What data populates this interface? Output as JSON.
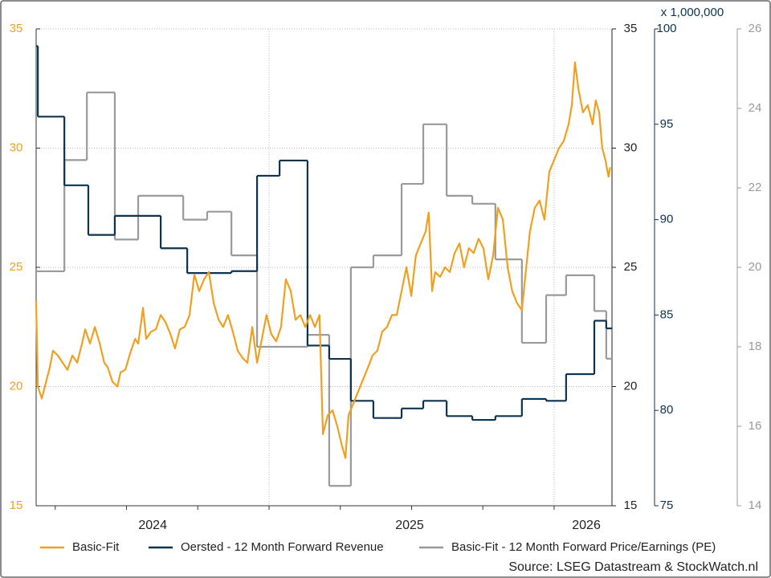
{
  "chart_data": {
    "type": "line",
    "source": "Source: LSEG Datastream & StockWatch.nl",
    "xlim": [
      2024.183,
      2026.203
    ],
    "xticks": [
      {
        "value": 2024.592,
        "label": "2024"
      },
      {
        "value": 2025.493,
        "label": "2025"
      },
      {
        "value": 2026.113,
        "label": "2026"
      }
    ],
    "x_minor_ticks": [
      2024.25,
      2024.5,
      2024.75,
      2025,
      2025.25,
      2025.5,
      2025.75,
      2026
    ],
    "x_grid": [
      2025,
      2026
    ],
    "ylim": [
      15,
      35
    ],
    "yticks": [
      15,
      20,
      25,
      30,
      35
    ],
    "y2lim": [
      75,
      100
    ],
    "y2ticks": [
      75,
      80,
      85,
      90,
      95,
      100
    ],
    "y2_unit": "x 1,000,000",
    "y3lim": [
      14,
      26
    ],
    "y3ticks": [
      14,
      16,
      18,
      20,
      22,
      24,
      26
    ],
    "grid": true,
    "legend": "bottom",
    "series": [
      {
        "name": "Basic-Fit",
        "color": "#f0a020",
        "axis": "y",
        "drawstyle": "line",
        "x": [
          2024.183,
          2024.189,
          2024.203,
          2024.22,
          2024.231,
          2024.242,
          2024.259,
          2024.276,
          2024.293,
          2024.31,
          2024.327,
          2024.344,
          2024.355,
          2024.372,
          2024.389,
          2024.406,
          2024.422,
          2024.434,
          2024.451,
          2024.468,
          2024.479,
          2024.496,
          2024.513,
          2024.53,
          2024.541,
          2024.558,
          2024.569,
          2024.586,
          2024.603,
          2024.62,
          2024.637,
          2024.654,
          2024.67,
          2024.687,
          2024.704,
          2024.721,
          2024.738,
          2024.755,
          2024.772,
          2024.789,
          2024.806,
          2024.823,
          2024.839,
          2024.856,
          2024.873,
          2024.89,
          2024.907,
          2024.924,
          2024.941,
          2024.958,
          2024.975,
          2024.991,
          2025.008,
          2025.025,
          2025.042,
          2025.059,
          2025.076,
          2025.093,
          2025.11,
          2025.127,
          2025.144,
          2025.161,
          2025.177,
          2025.189,
          2025.206,
          2025.223,
          2025.24,
          2025.256,
          2025.268,
          2025.279,
          2025.296,
          2025.313,
          2025.33,
          2025.347,
          2025.363,
          2025.38,
          2025.397,
          2025.414,
          2025.431,
          2025.448,
          2025.465,
          2025.482,
          2025.499,
          2025.515,
          2025.532,
          2025.549,
          2025.56,
          2025.572,
          2025.583,
          2025.6,
          2025.617,
          2025.634,
          2025.651,
          2025.668,
          2025.684,
          2025.701,
          2025.718,
          2025.735,
          2025.752,
          2025.769,
          2025.786,
          2025.803,
          2025.82,
          2025.837,
          2025.853,
          2025.87,
          2025.887,
          2025.898,
          2025.915,
          2025.932,
          2025.949,
          2025.966,
          2025.983,
          2026.0,
          2026.017,
          2026.034,
          2026.051,
          2026.062,
          2026.073,
          2026.085,
          2026.101,
          2026.118,
          2026.135,
          2026.146,
          2026.158,
          2026.169,
          2026.18,
          2026.191,
          2026.197
        ],
        "values": [
          23.6,
          20.0,
          19.5,
          20.3,
          20.8,
          21.5,
          21.3,
          21.0,
          20.7,
          21.3,
          21.0,
          21.8,
          22.4,
          21.8,
          22.5,
          21.8,
          21.0,
          20.8,
          20.2,
          20.0,
          20.6,
          20.7,
          21.4,
          22.0,
          21.8,
          23.3,
          22.0,
          22.3,
          22.4,
          23.0,
          22.7,
          22.2,
          21.6,
          22.4,
          22.5,
          23.0,
          24.7,
          24.0,
          24.5,
          24.8,
          23.5,
          22.8,
          22.5,
          23.0,
          22.3,
          21.5,
          21.2,
          21.0,
          22.5,
          21.0,
          22.0,
          23.0,
          22.2,
          21.9,
          22.5,
          24.5,
          24.0,
          22.8,
          23.0,
          22.5,
          23.0,
          22.5,
          23.0,
          18.0,
          18.8,
          19.0,
          18.3,
          17.5,
          17.0,
          18.8,
          19.3,
          19.8,
          20.3,
          20.8,
          21.3,
          21.5,
          22.3,
          22.5,
          23.0,
          23.0,
          24.0,
          25.0,
          23.8,
          25.5,
          26.0,
          26.5,
          27.3,
          24.0,
          24.8,
          24.6,
          25.0,
          24.8,
          25.6,
          26.0,
          25.0,
          25.8,
          25.6,
          26.2,
          25.8,
          24.5,
          25.5,
          27.5,
          27.0,
          25.0,
          24.0,
          23.5,
          23.2,
          24.5,
          26.5,
          27.5,
          27.8,
          27.0,
          29.0,
          29.5,
          30.0,
          30.3,
          31.0,
          31.8,
          33.6,
          32.5,
          31.5,
          31.8,
          31.0,
          32.0,
          31.5,
          30.0,
          29.5,
          28.8,
          29.2
        ]
      },
      {
        "name": "Oersted - 12 Month Forward Revenue",
        "color": "#0d3350",
        "axis": "y2",
        "drawstyle": "steps-post",
        "x": [
          2024.183,
          2024.189,
          2024.282,
          2024.366,
          2024.459,
          2024.62,
          2024.713,
          2024.868,
          2024.958,
          2025.037,
          2025.135,
          2025.211,
          2025.287,
          2025.366,
          2025.465,
          2025.541,
          2025.623,
          2025.713,
          2025.794,
          2025.887,
          2025.972,
          2026.042,
          2026.141,
          2026.183
        ],
        "values": [
          99.1,
          95.4,
          91.8,
          89.2,
          90.2,
          88.5,
          87.2,
          87.3,
          92.3,
          93.1,
          83.4,
          82.7,
          80.5,
          79.6,
          80.1,
          80.5,
          79.7,
          79.5,
          79.7,
          80.6,
          80.5,
          81.9,
          84.7,
          84.3
        ]
      },
      {
        "name": "Basic-Fit - 12 Month Forward Price/Earnings (PE)",
        "color": "#9a9a9a",
        "axis": "y3",
        "drawstyle": "steps-post",
        "x": [
          2024.183,
          2024.282,
          2024.361,
          2024.459,
          2024.541,
          2024.699,
          2024.783,
          2024.868,
          2024.958,
          2025.135,
          2025.211,
          2025.287,
          2025.366,
          2025.465,
          2025.541,
          2025.623,
          2025.713,
          2025.794,
          2025.887,
          2025.972,
          2026.042,
          2026.141,
          2026.183
        ],
        "values": [
          19.9,
          22.7,
          24.4,
          20.7,
          21.8,
          21.2,
          21.4,
          20.3,
          18.0,
          18.3,
          14.5,
          20.0,
          20.3,
          22.1,
          23.6,
          21.8,
          21.6,
          20.2,
          18.1,
          19.3,
          19.8,
          18.9,
          17.7
        ]
      }
    ]
  }
}
